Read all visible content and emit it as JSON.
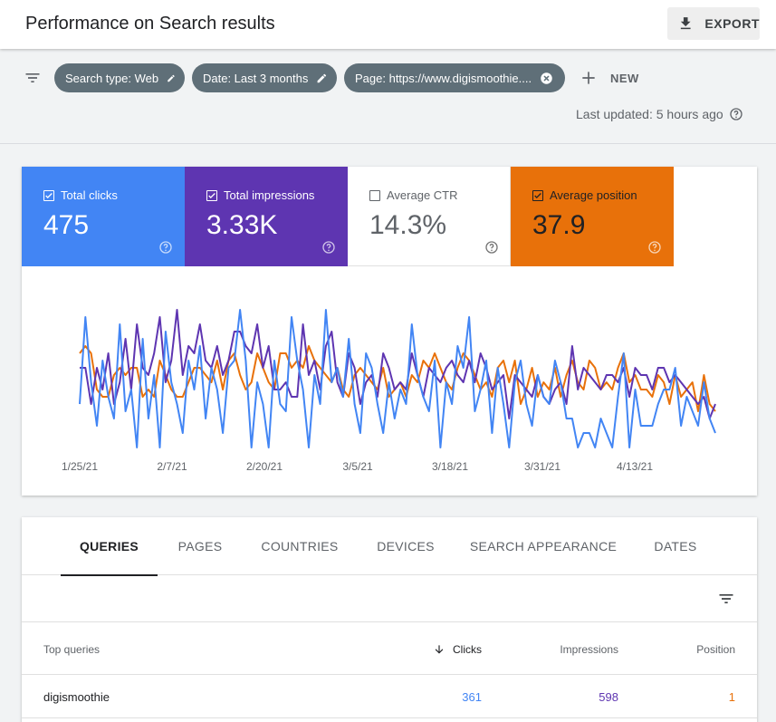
{
  "header": {
    "title": "Performance on Search results",
    "export_label": "EXPORT"
  },
  "filters": {
    "chips": [
      {
        "label": "Search type: Web",
        "icon": "pencil-icon"
      },
      {
        "label": "Date: Last 3 months",
        "icon": "pencil-icon"
      },
      {
        "label": "Page: https://www.digismoothie....",
        "icon": "close-circle-icon"
      }
    ],
    "new_label": "NEW",
    "last_updated": "Last updated: 5 hours ago"
  },
  "metrics": {
    "clicks": {
      "label": "Total clicks",
      "value": "475",
      "checked": true,
      "color": "#4285f4"
    },
    "impressions": {
      "label": "Total impressions",
      "value": "3.33K",
      "checked": true,
      "color": "#5e35b1"
    },
    "ctr": {
      "label": "Average CTR",
      "value": "14.3%",
      "checked": false
    },
    "position": {
      "label": "Average position",
      "value": "37.9",
      "checked": true,
      "color": "#e8710a"
    }
  },
  "chart_data": {
    "type": "line",
    "x_tick_labels": [
      "1/25/21",
      "2/7/21",
      "2/20/21",
      "3/5/21",
      "3/18/21",
      "3/31/21",
      "4/13/21"
    ],
    "series": [
      {
        "name": "Total clicks",
        "color": "#4285f4",
        "values": [
          0.3,
          0.9,
          0.45,
          0.15,
          0.6,
          0.35,
          0.2,
          0.85,
          0.25,
          0.4,
          0.0,
          0.75,
          0.2,
          0.5,
          0.0,
          0.8,
          0.45,
          0.3,
          0.1,
          0.6,
          0.4,
          0.7,
          0.2,
          0.55,
          0.4,
          0.1,
          0.55,
          0.6,
          0.95,
          0.6,
          0.0,
          0.45,
          0.3,
          0.0,
          0.6,
          0.3,
          0.25,
          0.9,
          0.6,
          0.4,
          0.0,
          0.5,
          0.3,
          0.95,
          0.45,
          0.55,
          0.35,
          0.75,
          0.3,
          0.1,
          0.65,
          0.55,
          0.3,
          0.1,
          0.45,
          0.2,
          0.4,
          0.3,
          0.85,
          0.5,
          0.35,
          0.25,
          0.6,
          0.0,
          0.45,
          0.3,
          0.7,
          0.55,
          0.9,
          0.25,
          0.4,
          0.6,
          0.1,
          0.55,
          0.3,
          0.0,
          0.45,
          0.6,
          0.3,
          0.15,
          0.5,
          0.35,
          0.3,
          0.6,
          0.45,
          0.2,
          0.2,
          0.0,
          0.1,
          0.1,
          0.0,
          0.2,
          0.1,
          0.0,
          0.35,
          0.65,
          0.0,
          0.4,
          0.15,
          0.15,
          0.15,
          0.3,
          0.4,
          0.4,
          0.55,
          0.15,
          0.35,
          0.25,
          0.15,
          0.45,
          0.2,
          0.1
        ]
      },
      {
        "name": "Total impressions",
        "color": "#5e35b1",
        "values": [
          0.55,
          0.55,
          0.3,
          0.55,
          0.4,
          0.65,
          0.3,
          0.45,
          0.75,
          0.4,
          0.85,
          0.55,
          0.5,
          0.65,
          0.9,
          0.45,
          0.6,
          0.95,
          0.5,
          0.7,
          0.65,
          0.85,
          0.6,
          0.55,
          0.7,
          0.5,
          0.6,
          0.8,
          0.8,
          0.7,
          0.65,
          0.85,
          0.55,
          0.7,
          0.4,
          0.4,
          0.45,
          0.35,
          0.35,
          0.85,
          0.5,
          0.6,
          0.4,
          0.7,
          0.8,
          0.45,
          0.35,
          0.65,
          0.55,
          0.3,
          0.45,
          0.5,
          0.35,
          0.65,
          0.55,
          0.4,
          0.45,
          0.4,
          0.65,
          0.5,
          0.35,
          0.55,
          0.5,
          0.45,
          0.55,
          0.6,
          0.5,
          0.45,
          0.6,
          0.45,
          0.65,
          0.55,
          0.4,
          0.45,
          0.5,
          0.2,
          0.5,
          0.45,
          0.4,
          0.35,
          0.5,
          0.35,
          0.3,
          0.4,
          0.45,
          0.3,
          0.7,
          0.4,
          0.55,
          0.5,
          0.45,
          0.4,
          0.5,
          0.5,
          0.45,
          0.55,
          0.35,
          0.55,
          0.5,
          0.5,
          0.4,
          0.55,
          0.55,
          0.45,
          0.5,
          0.45,
          0.4,
          0.35,
          0.3,
          0.35,
          0.2,
          0.3
        ]
      },
      {
        "name": "Average position",
        "color": "#e8710a",
        "values": [
          0.65,
          0.7,
          0.65,
          0.4,
          0.35,
          0.35,
          0.5,
          0.55,
          0.5,
          0.55,
          0.55,
          0.35,
          0.4,
          0.35,
          0.6,
          0.5,
          0.4,
          0.35,
          0.35,
          0.45,
          0.55,
          0.55,
          0.5,
          0.45,
          0.6,
          0.4,
          0.6,
          0.65,
          0.5,
          0.4,
          0.45,
          0.65,
          0.55,
          0.45,
          0.4,
          0.65,
          0.65,
          0.55,
          0.6,
          0.55,
          0.7,
          0.6,
          0.55,
          0.5,
          0.45,
          0.55,
          0.4,
          0.35,
          0.5,
          0.55,
          0.5,
          0.45,
          0.4,
          0.55,
          0.35,
          0.4,
          0.45,
          0.35,
          0.5,
          0.45,
          0.6,
          0.55,
          0.65,
          0.55,
          0.45,
          0.4,
          0.55,
          0.65,
          0.6,
          0.5,
          0.4,
          0.45,
          0.35,
          0.55,
          0.6,
          0.45,
          0.6,
          0.3,
          0.4,
          0.55,
          0.35,
          0.45,
          0.4,
          0.55,
          0.35,
          0.5,
          0.6,
          0.45,
          0.4,
          0.6,
          0.55,
          0.4,
          0.45,
          0.4,
          0.55,
          0.65,
          0.45,
          0.5,
          0.4,
          0.4,
          0.35,
          0.5,
          0.45,
          0.3,
          0.5,
          0.35,
          0.4,
          0.45,
          0.25,
          0.5,
          0.3,
          0.25
        ]
      }
    ],
    "grid": false,
    "legend": "none"
  },
  "tabs": [
    "QUERIES",
    "PAGES",
    "COUNTRIES",
    "DEVICES",
    "SEARCH APPEARANCE",
    "DATES"
  ],
  "active_tab": "QUERIES",
  "table": {
    "columns": {
      "query": "Top queries",
      "clicks": "Clicks",
      "impressions": "Impressions",
      "position": "Position"
    },
    "rows": [
      {
        "query": "digismoothie",
        "clicks": "361",
        "impressions": "598",
        "position": "1"
      }
    ]
  }
}
